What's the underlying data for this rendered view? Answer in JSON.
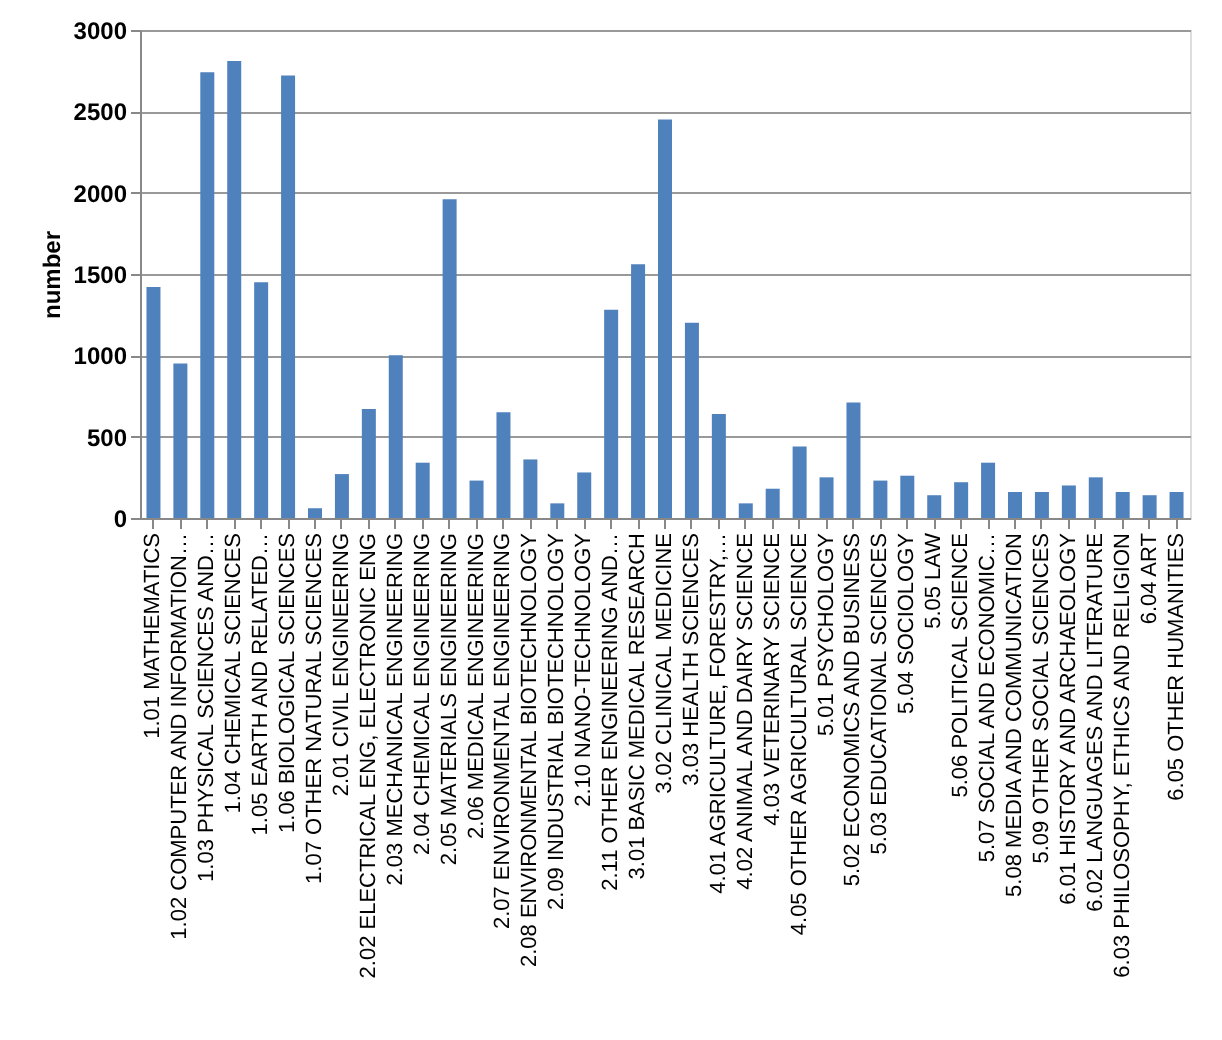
{
  "chart_data": {
    "type": "bar",
    "ylabel": "number",
    "categories": [
      "1.01 MATHEMATICS",
      "1.02 COMPUTER AND INFORMATION…",
      "1.03 PHYSICAL SCIENCES AND…",
      "1.04 CHEMICAL SCIENCES",
      "1.05 EARTH AND RELATED…",
      "1.06 BIOLOGICAL SCIENCES",
      "1.07 OTHER NATURAL SCIENCES",
      "2.01 CIVIL ENGINEERING",
      "2.02 ELECTRICAL ENG, ELECTRONIC ENG",
      "2.03 MECHANICAL ENGINEERING",
      "2.04 CHEMICAL ENGINEERING",
      "2.05 MATERIALS ENGINEERING",
      "2.06 MEDICAL ENGINEERING",
      "2.07 ENVIRONMENTAL ENGINEERING",
      "2.08 ENVIRONMENTAL BIOTECHNOLOGY",
      "2.09 INDUSTRIAL BIOTECHNOLOGY",
      "2.10 NANO-TECHNOLOGY",
      "2.11 OTHER ENGINEERING AND…",
      "3.01 BASIC MEDICAL RESEARCH",
      "3.02 CLINICAL MEDICINE",
      "3.03 HEALTH SCIENCES",
      "4.01 AGRICULTURE, FORESTRY,…",
      "4.02 ANIMAL AND DAIRY SCIENCE",
      "4.03 VETERINARY SCIENCE",
      "4.05 OTHER AGRICULTURAL SCIENCE",
      "5.01 PSYCHOLOGY",
      "5.02 ECONOMICS AND BUSINESS",
      "5.03 EDUCATIONAL SCIENCES",
      "5.04 SOCIOLOGY",
      "5.05 LAW",
      "5.06 POLITICAL SCIENCE",
      "5.07 SOCIAL AND ECONOMIC…",
      "5.08 MEDIA AND COMMUNICATION",
      "5.09 OTHER SOCIAL SCIENCES",
      "6.01 HISTORY AND ARCHAEOLOGY",
      "6.02 LANGUAGES AND LITERATURE",
      "6.03 PHILOSOPHY, ETHICS AND RELIGION",
      "6.04 ART",
      "6.05 OTHER HUMANITIES"
    ],
    "values": [
      1420,
      950,
      2740,
      2810,
      1450,
      2720,
      60,
      270,
      670,
      1000,
      340,
      1960,
      230,
      650,
      360,
      90,
      280,
      1280,
      1560,
      2450,
      1200,
      640,
      90,
      180,
      440,
      250,
      710,
      230,
      260,
      140,
      220,
      340,
      160,
      160,
      200,
      250,
      160,
      140,
      160
    ],
    "color": "#4f81bd",
    "ylim": [
      0,
      3000
    ],
    "yticks": [
      0,
      500,
      1000,
      1500,
      2000,
      2500,
      3000
    ],
    "grid": "y"
  }
}
